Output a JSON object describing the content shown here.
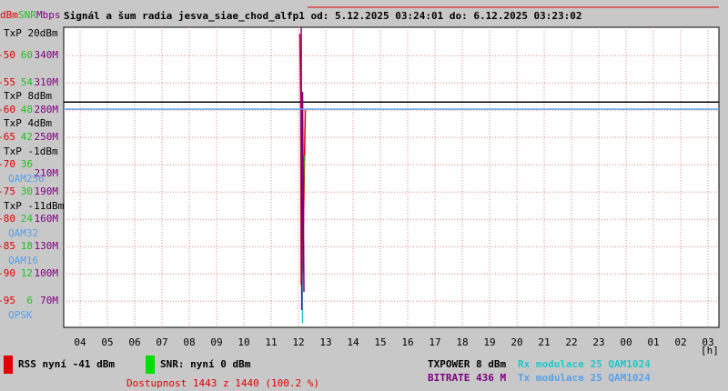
{
  "chart_data": {
    "type": "line",
    "title": "Signál a šum radia jesva_siae_chod_alfp1 od: 5.12.2025 03:24:01 do: 6.12.2025 03:23:02",
    "axis_labels": {
      "y": "dBm",
      "y2": "SNR",
      "y3": "Mbps"
    },
    "xlim": [
      3.4,
      27.4
    ],
    "xticks": [
      {
        "value": 4,
        "label": "04"
      },
      {
        "value": 5,
        "label": "05"
      },
      {
        "value": 6,
        "label": "06"
      },
      {
        "value": 7,
        "label": "07"
      },
      {
        "value": 8,
        "label": "08"
      },
      {
        "value": 9,
        "label": "09"
      },
      10,
      11,
      12,
      13,
      14,
      15,
      16,
      17,
      18,
      19,
      20,
      21,
      22,
      23,
      {
        "value": 24,
        "label": "00"
      },
      {
        "value": 25,
        "label": "01"
      },
      {
        "value": 26,
        "label": "02"
      },
      {
        "value": 27,
        "label": "03"
      }
    ],
    "x_unit": "[h]",
    "ylim": [
      -99.8,
      -44.8
    ],
    "yticks": [
      -50,
      -55,
      -60,
      -65,
      -70,
      -75,
      -80,
      -85,
      -90,
      -95
    ],
    "y2lim": [
      0.2,
      66.2
    ],
    "y2ticks": [
      60,
      54,
      48,
      42,
      36,
      30,
      24,
      18,
      12,
      6
    ],
    "y3lim": [
      41,
      371
    ],
    "y3ticks": [
      {
        "value": 340,
        "label": "340M"
      },
      {
        "value": 310,
        "label": "310M"
      },
      {
        "value": 280,
        "label": "280M"
      },
      {
        "value": 250,
        "label": "250M"
      },
      {
        "value": 210,
        "label": "210M"
      },
      {
        "value": 190,
        "label": "190M"
      },
      {
        "value": 160,
        "label": "160M"
      },
      {
        "value": 130,
        "label": "130M"
      },
      {
        "value": 100,
        "label": "100M"
      },
      {
        "value": 70,
        "label": "70M"
      }
    ],
    "txp_labels": [
      "TxP 20dBm",
      "TxP 8dBm",
      "TxP 4dBm",
      "TxP -1dBm",
      "TxP -11dBm"
    ],
    "modulation_labels": [
      "QAM256",
      "QAM32",
      "QAM16",
      "QPSK"
    ],
    "grid": true,
    "series": [
      {
        "name": "RSS nyní -41 dBm",
        "color": "#e00000",
        "axis": "y",
        "x": [
          12.05,
          12.08,
          12.1,
          12.12,
          12.15,
          12.2,
          12.25
        ],
        "values": [
          -46,
          -58,
          -92,
          -60,
          -90,
          -75,
          -60
        ]
      },
      {
        "name": "SNR: nyní 0 dBm",
        "color": "#00e000",
        "axis": "y2",
        "x": [
          12.1,
          12.15,
          12.2
        ],
        "values": [
          40,
          20,
          38
        ]
      },
      {
        "name": "TXPOWER 8 dBm",
        "color": "#000000",
        "axis": "y",
        "x": [
          3.4,
          27.4
        ],
        "values": [
          -58.5,
          -58.5
        ]
      },
      {
        "name": "Rx modulace 25 QAM1024",
        "color": "#20c8c8",
        "axis": "y",
        "x": [
          12.1,
          12.15
        ],
        "values": [
          -60,
          -99
        ]
      },
      {
        "name": "BITRATE 436 M",
        "color": "#800080",
        "axis": "y3",
        "x": [
          12.1,
          12.12,
          12.15,
          12.2
        ],
        "values": [
          371,
          60,
          300,
          80
        ]
      },
      {
        "name": "Tx modulace 25 QAM1024",
        "color": "#5aa0e6",
        "axis": "y",
        "x": [
          3.4,
          27.4
        ],
        "values": [
          -59.8,
          -59.8
        ]
      }
    ],
    "availability": "Dostupnost 1443 z 1440 (100.2 %)"
  }
}
